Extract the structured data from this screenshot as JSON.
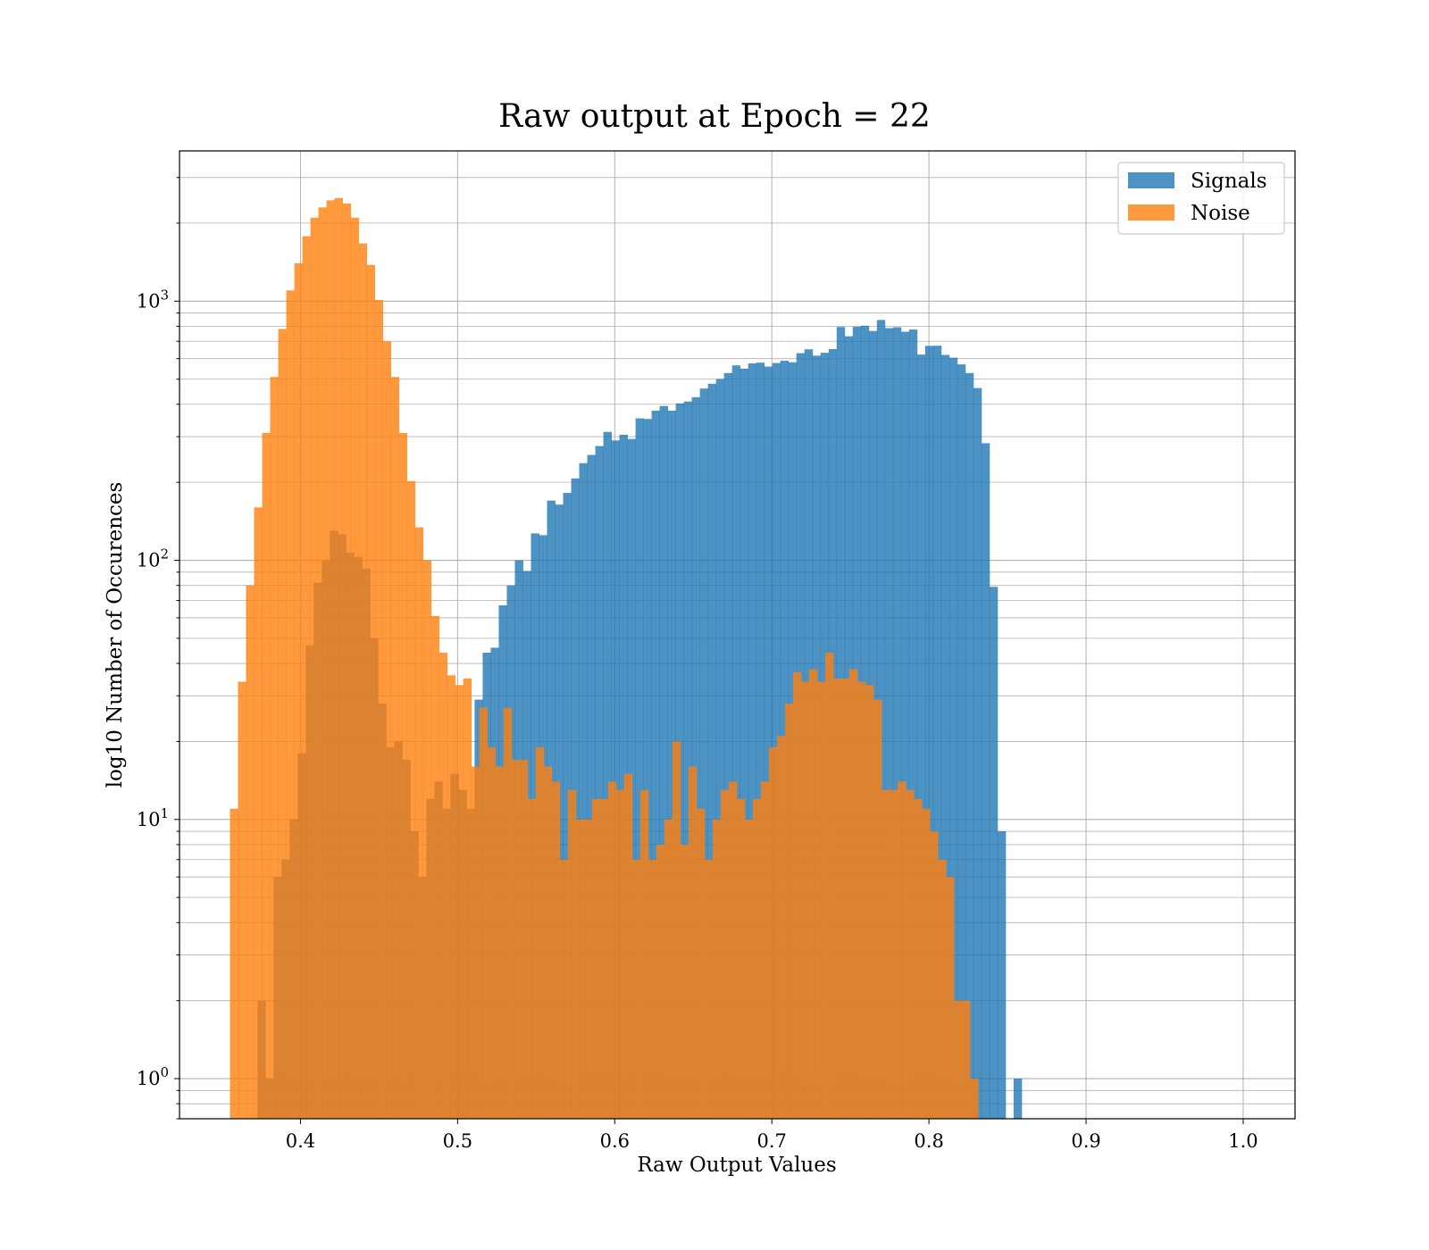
{
  "chart_data": {
    "type": "bar",
    "title": "Raw output at Epoch = 22",
    "xlabel": "Raw Output Values",
    "ylabel": "log10 Number of Occurences",
    "xlim": [
      0.323,
      1.033
    ],
    "ylim": [
      0.7,
      3800
    ],
    "yscale": "log",
    "grid": true,
    "legend_position": "top-right",
    "x_ticks": [
      "0.4",
      "0.5",
      "0.6",
      "0.7",
      "0.8",
      "0.9",
      "1.0"
    ],
    "y_ticks": [
      {
        "base": "10",
        "exp": "0",
        "value": 1
      },
      {
        "base": "10",
        "exp": "1",
        "value": 10
      },
      {
        "base": "10",
        "exp": "2",
        "value": 100
      },
      {
        "base": "10",
        "exp": "3",
        "value": 1000
      }
    ],
    "series": [
      {
        "name": "Signals",
        "color": "#1f77b4",
        "alpha": 0.8,
        "x_start": 0.3726,
        "bin_width": 0.00512,
        "values": [
          2,
          1,
          6,
          7,
          10,
          18,
          47,
          82,
          100,
          130,
          126,
          107,
          103,
          93,
          50,
          28,
          19,
          20,
          17,
          9,
          6,
          12,
          14,
          11,
          15,
          13,
          11,
          29,
          44,
          46,
          67,
          80,
          100,
          91,
          127,
          125,
          170,
          164,
          182,
          207,
          237,
          255,
          276,
          313,
          290,
          305,
          294,
          353,
          351,
          378,
          394,
          378,
          403,
          410,
          426,
          460,
          480,
          501,
          528,
          565,
          549,
          575,
          579,
          559,
          577,
          589,
          581,
          630,
          652,
          616,
          632,
          653,
          795,
          732,
          797,
          804,
          767,
          846,
          787,
          793,
          762,
          777,
          622,
          672,
          673,
          620,
          605,
          570,
          528,
          462,
          283,
          79,
          9,
          0,
          1
        ]
      },
      {
        "name": "Noise",
        "color": "#ff7f0e",
        "alpha": 0.8,
        "x_start": 0.3551,
        "bin_width": 0.00512,
        "values": [
          11,
          34,
          80,
          160,
          310,
          510,
          780,
          1100,
          1400,
          1780,
          2100,
          2300,
          2450,
          2500,
          2380,
          2100,
          1670,
          1380,
          1010,
          700,
          510,
          310,
          202,
          134,
          100,
          61,
          44,
          36,
          33,
          35,
          16,
          27,
          19,
          16,
          27,
          17,
          17,
          12,
          19,
          16,
          14,
          7,
          13,
          10,
          10,
          12,
          12,
          14,
          13,
          15,
          7,
          13,
          7,
          8,
          10,
          20,
          8,
          16,
          11,
          7,
          10,
          13,
          14,
          12,
          10,
          12,
          14,
          19,
          21,
          28,
          37,
          34,
          38,
          34,
          44,
          35,
          35,
          38,
          34,
          33,
          29,
          13,
          13,
          14,
          13,
          12,
          11,
          9,
          7,
          6,
          2,
          2,
          1
        ]
      }
    ]
  }
}
